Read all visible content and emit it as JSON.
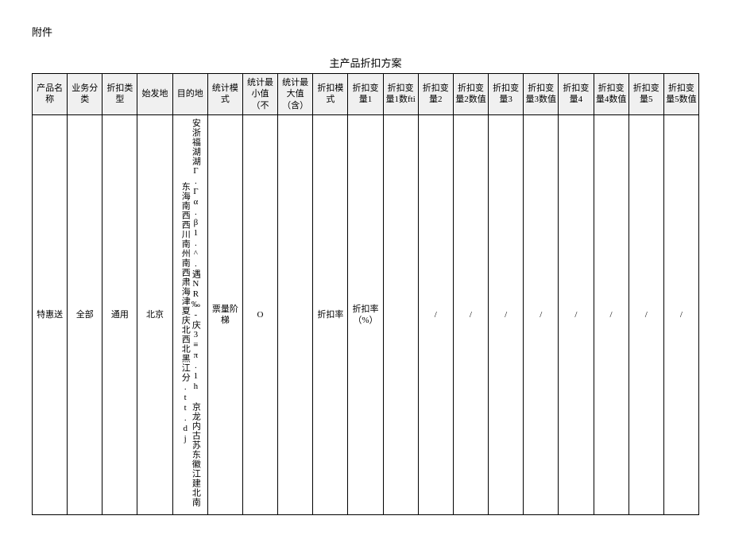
{
  "attachment_label": "附件",
  "table_title": "主产品折扣方案",
  "headers": [
    "产品名称",
    "业务分类",
    "折扣类型",
    "始发地",
    "目的地",
    "统计模式",
    "统计最小值（不",
    "统计最大值（含）",
    "折扣模式",
    "折扣变量1",
    "折扣变量1数fti",
    "折扣变量2",
    "折扣变量2数值",
    "折扣变量3",
    "折扣变量3数值",
    "折扣变量4",
    "折扣变量4数值",
    "折扣变量5",
    "折扣变量5数值"
  ],
  "row": {
    "product_name": "特惠送",
    "business_class": "全部",
    "discount_type": "通用",
    "origin": "北京",
    "destination": "安浙福湖湖Γ.Γα.β1.^.遇NR‰-庆3≡π.1h 京龙内古苏东徽江建北南东海南西西川南州南西肃海津夏庆北西北黑江分.tt.dj",
    "stat_mode": "票量阶梯",
    "stat_min": "O",
    "stat_max": "",
    "discount_mode": "折扣率",
    "var1": "折扣率（%）",
    "var1_num": "",
    "var2": "/",
    "var2_num": "/",
    "var3": "/",
    "var3_num": "/",
    "var4": "/",
    "var4_num": "/",
    "var5": "/",
    "var5_num": "/"
  }
}
